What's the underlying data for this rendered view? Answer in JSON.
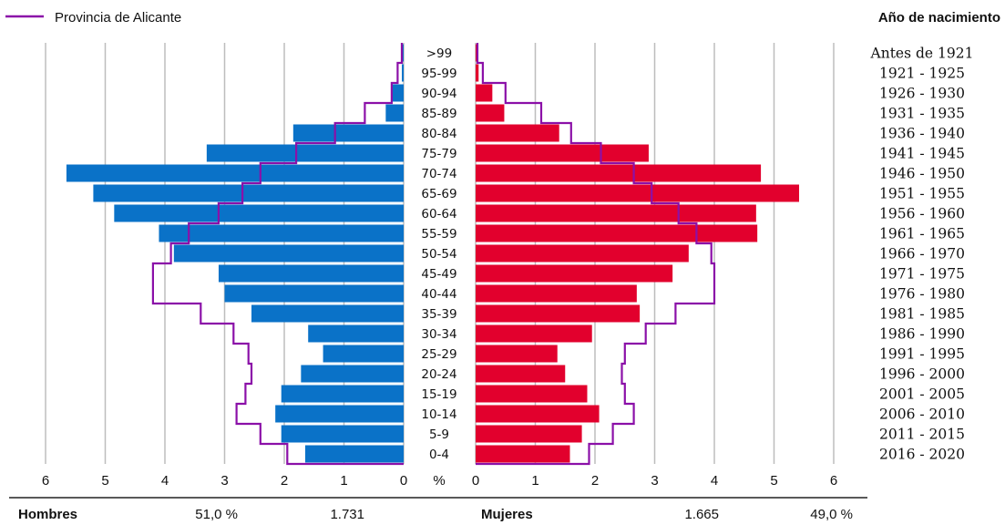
{
  "legend": {
    "label": "Provincia de Alicante",
    "color": "#8b10a8"
  },
  "right_header": "Año de nacimiento",
  "footer": {
    "men_label": "Hombres",
    "men_pct": "51,0 %",
    "men_count": "1.731",
    "women_label": "Mujeres",
    "women_count": "1.665",
    "women_pct": "49,0 %"
  },
  "colors": {
    "men": "#0a72c8",
    "women": "#e2002d",
    "grid": "#bdbdbd",
    "line": "#8b10a8"
  },
  "chart_data": {
    "type": "bar",
    "subtype": "population-pyramid",
    "unit_label": "%",
    "xlim": [
      0,
      6
    ],
    "x_ticks": [
      "6",
      "5",
      "4",
      "3",
      "2",
      "1",
      "0",
      "0",
      "1",
      "2",
      "3",
      "4",
      "5",
      "6"
    ],
    "categories": [
      ">99",
      "95-99",
      "90-94",
      "85-89",
      "80-84",
      "75-79",
      "70-74",
      "65-69",
      "60-64",
      "55-59",
      "50-54",
      "45-49",
      "40-44",
      "35-39",
      "30-34",
      "25-29",
      "20-24",
      "15-19",
      "10-14",
      "5-9",
      "0-4"
    ],
    "birth_years": [
      "Antes de 1921",
      "1921 - 1925",
      "1926 - 1930",
      "1931 - 1935",
      "1936 - 1940",
      "1941 - 1945",
      "1946 - 1950",
      "1951 - 1955",
      "1956 - 1960",
      "1961 - 1965",
      "1966 - 1970",
      "1971 - 1975",
      "1976 - 1980",
      "1981 - 1985",
      "1986 - 1990",
      "1991 - 1995",
      "1996 - 2000",
      "2001 - 2005",
      "2006 - 2010",
      "2011 - 2015",
      "2016 - 2020"
    ],
    "series": [
      {
        "name": "Hombres",
        "values": [
          0.03,
          0.03,
          0.2,
          0.3,
          1.85,
          3.3,
          5.65,
          5.2,
          4.85,
          4.1,
          3.85,
          3.1,
          3.0,
          2.55,
          1.6,
          1.35,
          1.72,
          2.05,
          2.15,
          2.05,
          1.65
        ]
      },
      {
        "name": "Mujeres",
        "values": [
          0.03,
          0.05,
          0.28,
          0.48,
          1.4,
          2.9,
          4.78,
          5.42,
          4.7,
          4.72,
          3.57,
          3.3,
          2.7,
          2.75,
          1.95,
          1.37,
          1.5,
          1.87,
          2.07,
          1.78,
          1.58
        ]
      },
      {
        "name": "Provincia de Alicante",
        "sex": "Hombres",
        "values": [
          0.03,
          0.1,
          0.2,
          0.65,
          1.15,
          1.8,
          2.4,
          2.7,
          3.1,
          3.6,
          3.9,
          4.2,
          4.2,
          3.4,
          2.85,
          2.6,
          2.55,
          2.65,
          2.8,
          2.4,
          1.95
        ]
      },
      {
        "name": "Provincia de Alicante",
        "sex": "Mujeres",
        "values": [
          0.03,
          0.12,
          0.5,
          1.1,
          1.6,
          2.1,
          2.65,
          2.95,
          3.4,
          3.7,
          3.95,
          4.0,
          4.0,
          3.35,
          2.85,
          2.5,
          2.45,
          2.5,
          2.65,
          2.3,
          1.9
        ]
      }
    ]
  }
}
